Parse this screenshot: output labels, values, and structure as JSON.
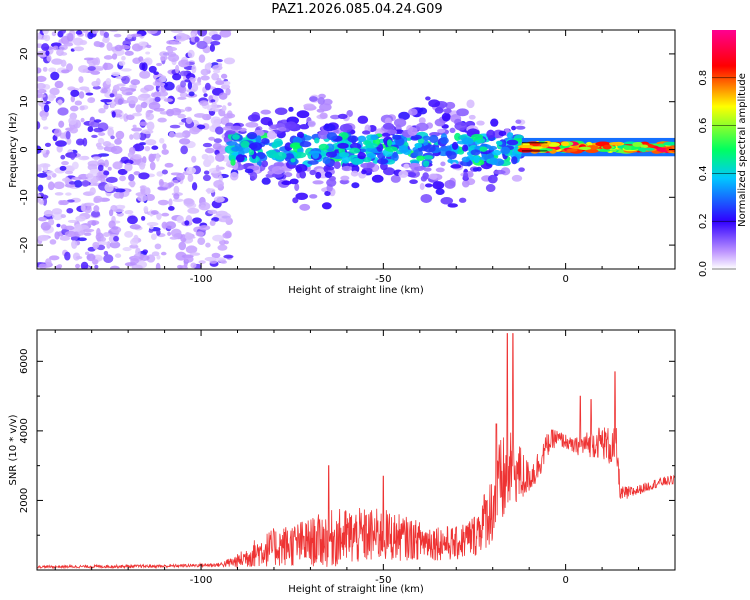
{
  "title": "PAZ1.2026.085.04.24.G09",
  "colors": {
    "snr_line": "#ee3333",
    "signal_core": "#ff0000",
    "noise_dark": "#7a20e0",
    "noise_light": "#d8b8f5"
  },
  "chart_data": [
    {
      "type": "heatmap",
      "name": "spectrogram",
      "xlabel": "Height of straight line (km)",
      "ylabel": "Frequency (Hz)",
      "xlim": [
        -145,
        30
      ],
      "ylim": [
        -25,
        25
      ],
      "xticks": [
        -100,
        -50,
        0
      ],
      "yticks": [
        -20,
        -10,
        0,
        10,
        20
      ],
      "colorbar": {
        "label": "Normalized spectral amplitude",
        "range": [
          0,
          1
        ],
        "ticks": [
          "0.0",
          "0.2",
          "0.4",
          "0.6",
          "0.8"
        ],
        "tick_values": [
          0.0,
          0.2,
          0.4,
          0.6,
          0.8
        ],
        "colormap": [
          "#ffffff",
          "#b070ff",
          "#3000ff",
          "#00c8ff",
          "#00ff60",
          "#ffff00",
          "#ff0000",
          "#ff0090"
        ]
      },
      "regions": [
        {
          "name": "noise",
          "x_range": [
            -145,
            -92
          ],
          "freq_range": [
            -25,
            25
          ],
          "amplitude": 0.1
        },
        {
          "name": "signal-broad",
          "x_range": [
            -92,
            -12
          ],
          "center_freq": 0,
          "half_width_hz": 8,
          "amplitude": 0.35
        },
        {
          "name": "signal-narrow",
          "x_range": [
            -12,
            30
          ],
          "center_freq": 0.5,
          "half_width_hz": 1.5,
          "amplitude": 0.85
        }
      ]
    },
    {
      "type": "line",
      "name": "snr",
      "xlabel": "Height of straight line (km)",
      "ylabel": "SNR (10 * v/v)",
      "xlim": [
        -145,
        30
      ],
      "ylim": [
        0,
        6900
      ],
      "xticks": [
        -100,
        -50,
        0
      ],
      "yticks": [
        2000,
        4000,
        6000
      ],
      "series": [
        {
          "name": "SNR",
          "x_envelope": [
            -145,
            -130,
            -110,
            -95,
            -90,
            -85,
            -80,
            -70,
            -65,
            -60,
            -50,
            -40,
            -30,
            -25,
            -20,
            -18,
            -16,
            -15,
            -13,
            -12,
            -10,
            -8,
            -5,
            -3,
            0,
            2,
            5,
            8,
            10,
            12,
            14,
            15,
            17,
            20,
            25,
            30
          ],
          "baseline": [
            90,
            100,
            110,
            150,
            250,
            500,
            650,
            800,
            900,
            950,
            1000,
            850,
            750,
            1000,
            1800,
            2400,
            2700,
            2900,
            2800,
            2700,
            2650,
            2900,
            3600,
            3800,
            3700,
            3550,
            3600,
            3650,
            3700,
            3550,
            3450,
            2200,
            2200,
            2300,
            2500,
            2600
          ],
          "spread": [
            50,
            60,
            60,
            80,
            300,
            600,
            800,
            1000,
            1200,
            1200,
            1100,
            800,
            700,
            900,
            1500,
            2000,
            1800,
            1500,
            1300,
            1200,
            600,
            700,
            500,
            400,
            300,
            300,
            500,
            600,
            700,
            800,
            900,
            300,
            300,
            200,
            200,
            200
          ],
          "spikes": [
            {
              "x": -65,
              "y": 3000
            },
            {
              "x": -50,
              "y": 2700
            },
            {
              "x": -19,
              "y": 4200
            },
            {
              "x": -16,
              "y": 6800
            },
            {
              "x": -14.5,
              "y": 6800
            },
            {
              "x": 4,
              "y": 5000
            },
            {
              "x": 7,
              "y": 4900
            },
            {
              "x": 13.5,
              "y": 5700
            }
          ]
        }
      ]
    }
  ]
}
